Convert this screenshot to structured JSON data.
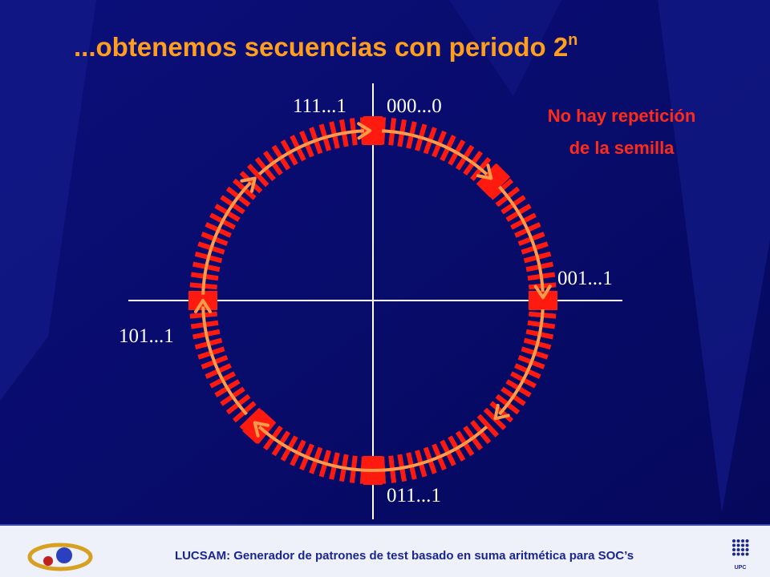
{
  "title": {
    "text": "...obtenemos secuencias con periodo 2",
    "superscript": "n"
  },
  "labels": {
    "top_left": "111...1",
    "top_right": "000...0",
    "right": "001...1",
    "bottom": "011...1",
    "left": "101...1"
  },
  "note": [
    "No hay repetición",
    "de la semilla"
  ],
  "footer": {
    "text": "LUCSAM: Generador de patrones de test basado en suma aritmética para SOC’s",
    "logo_text": "UPC"
  }
}
